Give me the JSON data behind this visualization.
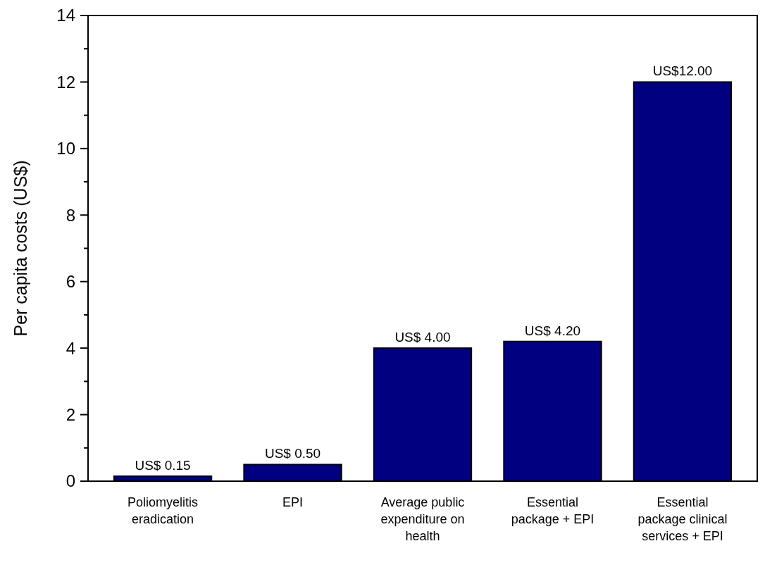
{
  "chart_data": {
    "type": "bar",
    "ylabel": "Per capita costs (US$)",
    "categories": [
      "Poliomyelitis eradication",
      "EPI",
      "Average public expenditure on health",
      "Essential package + EPI",
      "Essential package clinical services + EPI"
    ],
    "values": [
      0.15,
      0.5,
      4.0,
      4.2,
      12.0
    ],
    "value_labels": [
      "US$ 0.15",
      "US$ 0.50",
      "US$ 4.00",
      "US$ 4.20",
      "US$12.00"
    ],
    "color": "#000080",
    "ylim": [
      0,
      14
    ],
    "yticks": [
      0,
      {
        "value": 1,
        "label": null
      },
      2,
      {
        "value": 3,
        "label": null
      },
      4,
      {
        "value": 5,
        "label": null
      },
      6,
      {
        "value": 7,
        "label": null
      },
      8,
      {
        "value": 9,
        "label": null
      },
      10,
      {
        "value": 11,
        "label": null
      },
      12,
      {
        "value": 13,
        "label": null
      },
      14
    ],
    "grid": false
  }
}
